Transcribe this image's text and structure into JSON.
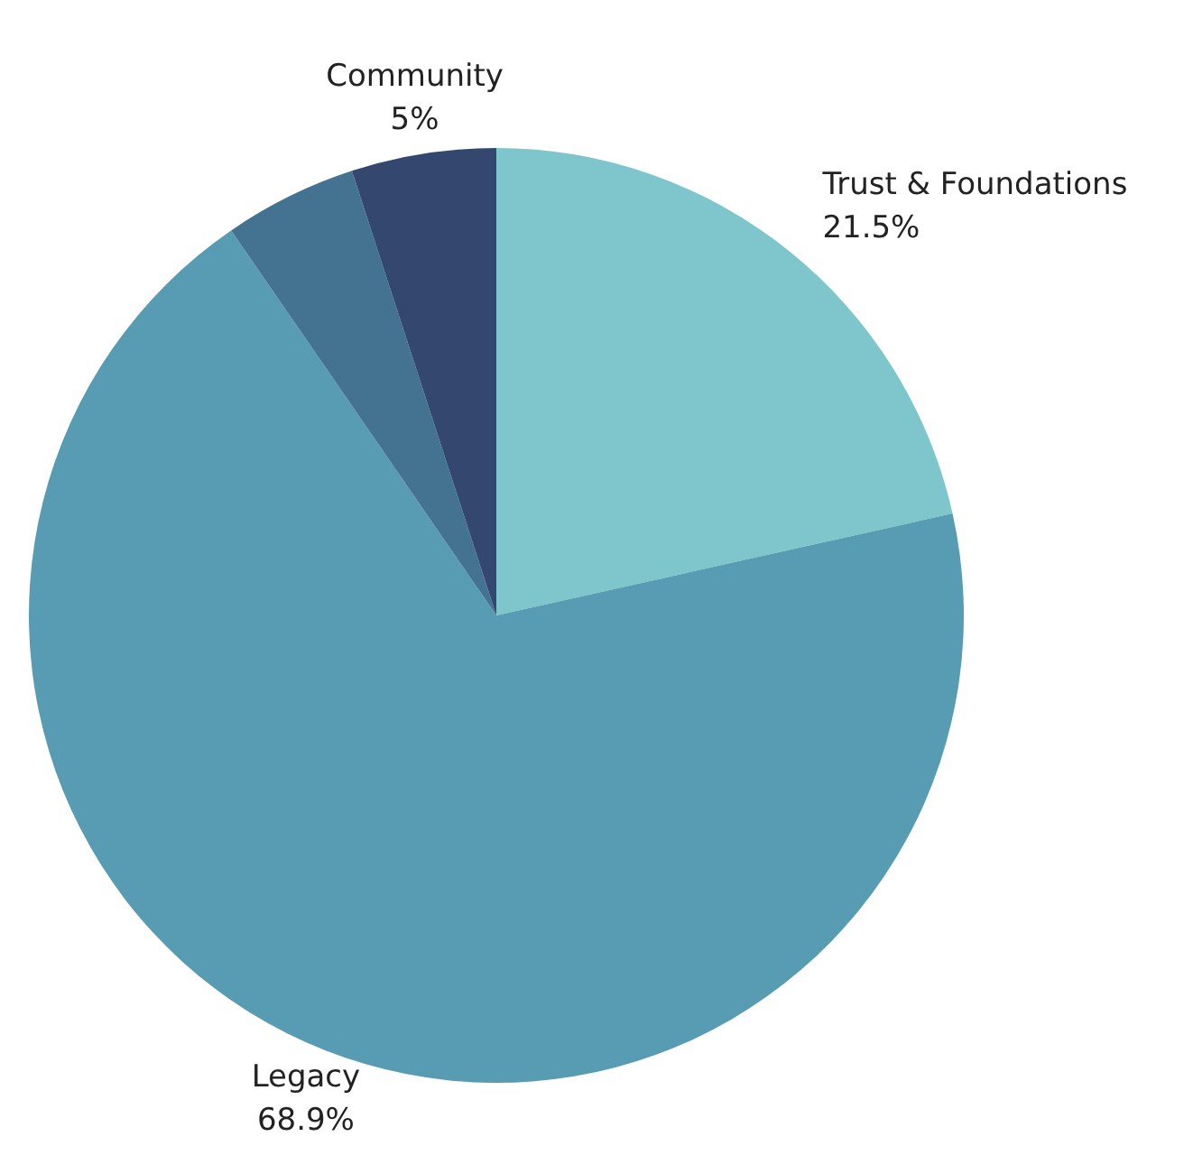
{
  "chart_data": {
    "type": "pie",
    "categories": [
      "Trust & Foundations",
      "Legacy",
      null,
      "Community"
    ],
    "values": [
      21.5,
      68.9,
      4.6,
      5
    ],
    "colors": [
      "#7ec6cc",
      "#589cb3",
      "#447291",
      "#34486f"
    ],
    "value_labels": [
      "21.5%",
      "68.9%",
      null,
      "5%"
    ],
    "legend": false
  }
}
